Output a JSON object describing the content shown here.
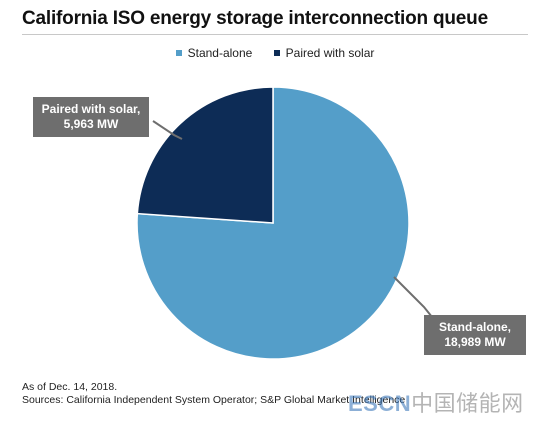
{
  "title": "California ISO energy storage interconnection queue",
  "chart_data": {
    "type": "pie",
    "title": "California ISO energy storage interconnection queue",
    "unit": "MW",
    "legend_position": "top",
    "slices": [
      {
        "name": "Stand-alone",
        "value": 18989,
        "label_line1": "Stand-alone,",
        "label_line2": "18,989 MW",
        "color": "#549ec9"
      },
      {
        "name": "Paired with solar",
        "value": 5963,
        "label_line1": "Paired with solar,",
        "label_line2": "5,963 MW",
        "color": "#0d2c56"
      }
    ]
  },
  "legend": [
    {
      "label": "Stand-alone",
      "color": "#549ec9"
    },
    {
      "label": "Paired with solar",
      "color": "#0d2c56"
    }
  ],
  "notes": {
    "as_of": "As of Dec. 14, 2018.",
    "sources": "Sources: California Independent System Operator; S&P Global Market Intelligence"
  },
  "watermark": {
    "latin": "ESCN",
    "cn": "中国储能网"
  },
  "colors": {
    "callout": "#6e6e6e",
    "leader": "#6e6e6e"
  }
}
